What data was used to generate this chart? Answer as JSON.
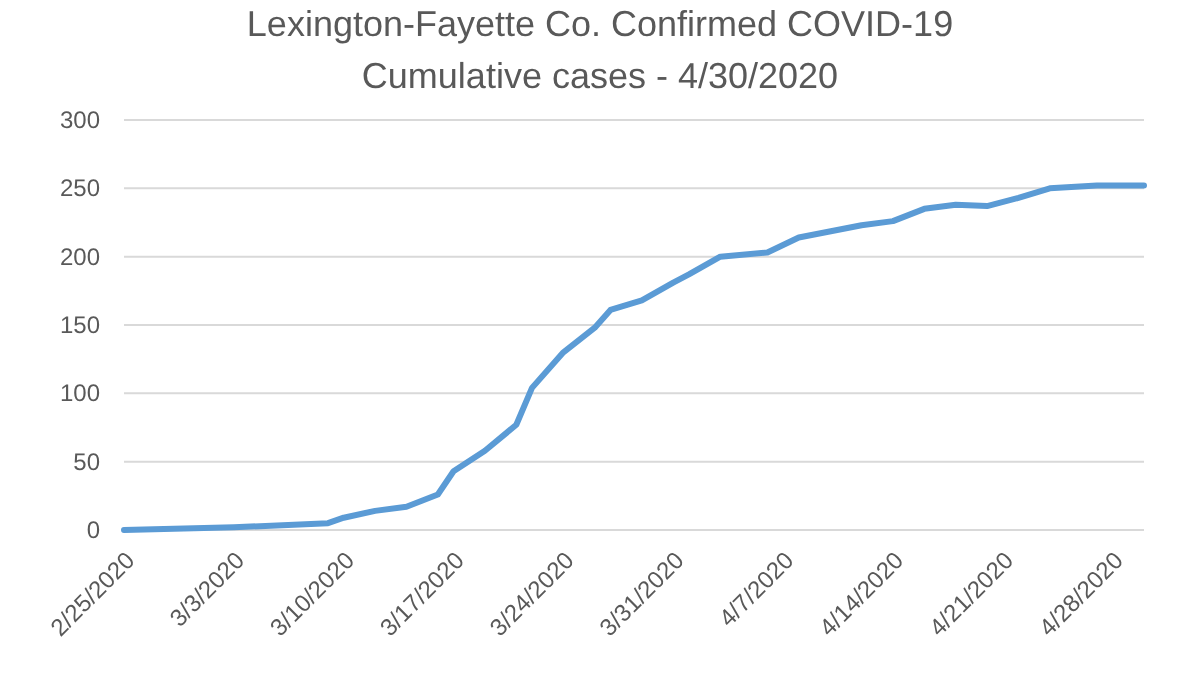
{
  "chart_data": {
    "type": "line",
    "title": "Lexington-Fayette Co. Confirmed COVID-19",
    "subtitle": "Cumulative cases - 4/30/2020",
    "x": [
      "2020-02-25",
      "2020-03-03",
      "2020-03-09",
      "2020-03-10",
      "2020-03-12",
      "2020-03-14",
      "2020-03-16",
      "2020-03-17",
      "2020-03-19",
      "2020-03-21",
      "2020-03-22",
      "2020-03-24",
      "2020-03-26",
      "2020-03-27",
      "2020-03-29",
      "2020-03-31",
      "2020-04-01",
      "2020-04-03",
      "2020-04-06",
      "2020-04-08",
      "2020-04-12",
      "2020-04-14",
      "2020-04-16",
      "2020-04-18",
      "2020-04-20",
      "2020-04-22",
      "2020-04-24",
      "2020-04-27",
      "2020-04-30"
    ],
    "series": [
      {
        "color": "#5b9bd5",
        "values": [
          0,
          2,
          5,
          9,
          14,
          17,
          26,
          43,
          58,
          77,
          104,
          130,
          148,
          161,
          168,
          181,
          187,
          200,
          203,
          214,
          223,
          226,
          235,
          238,
          237,
          243,
          250,
          252,
          252
        ]
      }
    ],
    "xlim": [
      "2020-02-25",
      "2020-04-30"
    ],
    "xticks": [
      {
        "value": "2020-02-25",
        "label": "2/25/2020"
      },
      {
        "value": "2020-03-03",
        "label": "3/3/2020"
      },
      {
        "value": "2020-03-10",
        "label": "3/10/2020"
      },
      {
        "value": "2020-03-17",
        "label": "3/17/2020"
      },
      {
        "value": "2020-03-24",
        "label": "3/24/2020"
      },
      {
        "value": "2020-03-31",
        "label": "3/31/2020"
      },
      {
        "value": "2020-04-07",
        "label": "4/7/2020"
      },
      {
        "value": "2020-04-14",
        "label": "4/14/2020"
      },
      {
        "value": "2020-04-21",
        "label": "4/21/2020"
      },
      {
        "value": "2020-04-28",
        "label": "4/28/2020"
      }
    ],
    "ylim": [
      0,
      300
    ],
    "yticks": [
      0,
      50,
      100,
      150,
      200,
      250,
      300
    ],
    "grid": "y",
    "marker": "none",
    "line_style": "solid"
  }
}
